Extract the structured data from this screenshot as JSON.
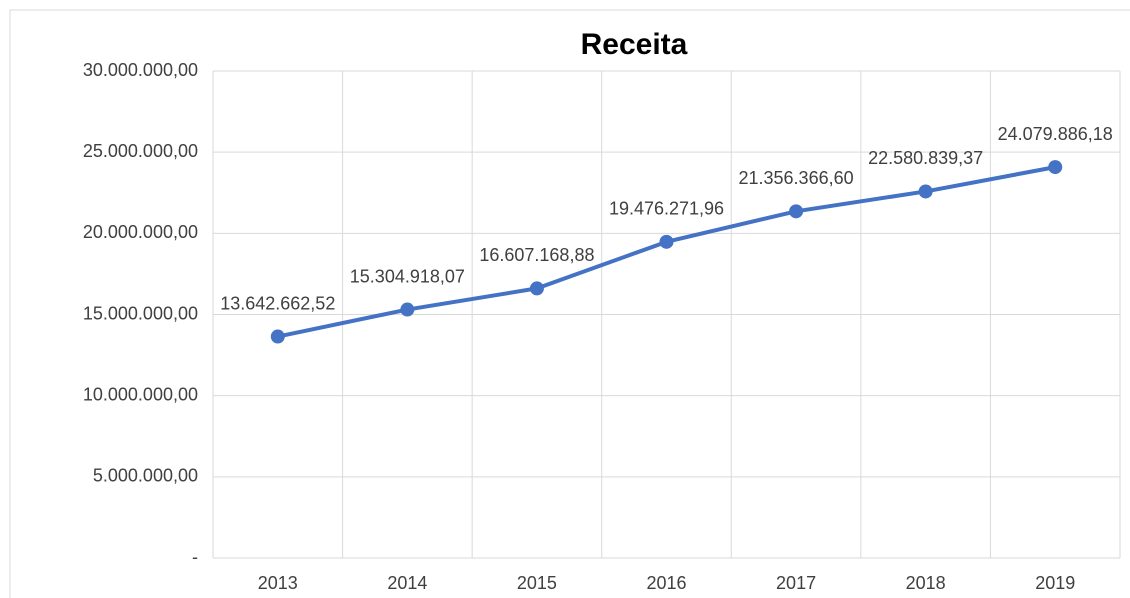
{
  "chart_data": {
    "type": "line",
    "title": "Receita",
    "categories": [
      "2013",
      "2014",
      "2015",
      "2016",
      "2017",
      "2018",
      "2019"
    ],
    "series": [
      {
        "name": "Receita",
        "color": "#4472c4",
        "values": [
          13642662.52,
          15304918.07,
          16607168.88,
          19476271.96,
          21356366.6,
          22580839.37,
          24079886.18
        ],
        "value_labels": [
          "13.642.662,52",
          "15.304.918,07",
          "16.607.168,88",
          "19.476.271,96",
          "21.356.366,60",
          "22.580.839,37",
          "24.079.886,18"
        ]
      }
    ],
    "ylim": [
      0,
      30000000
    ],
    "yticks": [
      {
        "value": 0,
        "label": "-"
      },
      {
        "value": 5000000,
        "label": "5.000.000,00"
      },
      {
        "value": 10000000,
        "label": "10.000.000,00"
      },
      {
        "value": 15000000,
        "label": "15.000.000,00"
      },
      {
        "value": 20000000,
        "label": "20.000.000,00"
      },
      {
        "value": 25000000,
        "label": "25.000.000,00"
      },
      {
        "value": 30000000,
        "label": "30.000.000,00"
      }
    ],
    "grid": true
  }
}
